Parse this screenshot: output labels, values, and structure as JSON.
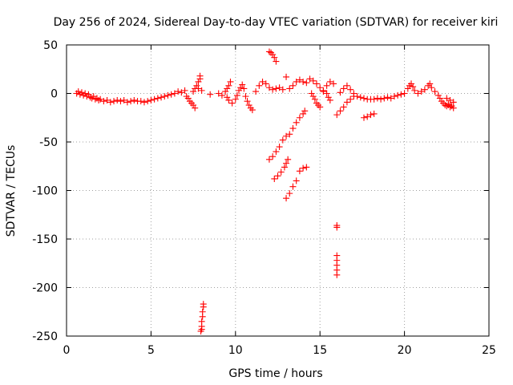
{
  "chart_data": {
    "type": "scatter",
    "title": "Day 256 of 2024, Sidereal Day-to-day VTEC variation (SDTVAR) for receiver kiri",
    "xlabel": "GPS time / hours",
    "ylabel": "SDTVAR / TECUs",
    "xlim": [
      0,
      25
    ],
    "ylim": [
      -250,
      50
    ],
    "xticks": [
      0,
      5,
      10,
      15,
      20,
      25
    ],
    "yticks": [
      50,
      0,
      -50,
      -100,
      -150,
      -200,
      -250
    ],
    "xtick_labels": [
      "0",
      "5",
      "10",
      "15",
      "20",
      "25"
    ],
    "ytick_labels": [
      "50",
      "0",
      "-50",
      "-100",
      "-150",
      "-200",
      "-250"
    ],
    "grid": true,
    "marker": "+",
    "color": "#ff0000",
    "series": [
      {
        "name": "SDTVAR",
        "points": [
          [
            0.6,
            0
          ],
          [
            0.7,
            2
          ],
          [
            0.8,
            -1
          ],
          [
            0.9,
            1
          ],
          [
            1.0,
            -2
          ],
          [
            1.1,
            0
          ],
          [
            1.2,
            -3
          ],
          [
            1.3,
            -1
          ],
          [
            1.4,
            -4
          ],
          [
            1.5,
            -5
          ],
          [
            1.6,
            -3
          ],
          [
            1.7,
            -6
          ],
          [
            1.8,
            -5
          ],
          [
            1.9,
            -7
          ],
          [
            2.0,
            -6
          ],
          [
            2.2,
            -8
          ],
          [
            2.4,
            -7
          ],
          [
            2.6,
            -9
          ],
          [
            2.8,
            -8
          ],
          [
            3.0,
            -7
          ],
          [
            3.2,
            -8
          ],
          [
            3.4,
            -7
          ],
          [
            3.6,
            -9
          ],
          [
            3.8,
            -8
          ],
          [
            4.0,
            -7
          ],
          [
            4.2,
            -8
          ],
          [
            4.4,
            -8
          ],
          [
            4.6,
            -9
          ],
          [
            4.8,
            -8
          ],
          [
            5.0,
            -7
          ],
          [
            5.2,
            -6
          ],
          [
            5.4,
            -5
          ],
          [
            5.6,
            -4
          ],
          [
            5.8,
            -3
          ],
          [
            6.0,
            -2
          ],
          [
            6.2,
            -1
          ],
          [
            6.4,
            0
          ],
          [
            6.6,
            2
          ],
          [
            6.8,
            1
          ],
          [
            7.0,
            3
          ],
          [
            7.1,
            -3
          ],
          [
            7.2,
            -5
          ],
          [
            7.3,
            -8
          ],
          [
            7.4,
            -10
          ],
          [
            7.5,
            -12
          ],
          [
            7.6,
            -15
          ],
          [
            7.5,
            2
          ],
          [
            7.6,
            5
          ],
          [
            7.7,
            8
          ],
          [
            7.8,
            12
          ],
          [
            7.9,
            15
          ],
          [
            7.9,
            18
          ],
          [
            7.8,
            5
          ],
          [
            8.0,
            3
          ],
          [
            8.5,
            -1
          ],
          [
            9.0,
            0
          ],
          [
            9.2,
            -2
          ],
          [
            9.4,
            2
          ],
          [
            9.5,
            5
          ],
          [
            9.6,
            8
          ],
          [
            9.7,
            12
          ],
          [
            9.5,
            -4
          ],
          [
            9.6,
            -7
          ],
          [
            9.8,
            -10
          ],
          [
            10.0,
            -6
          ],
          [
            10.1,
            -2
          ],
          [
            10.2,
            3
          ],
          [
            10.3,
            6
          ],
          [
            10.4,
            9
          ],
          [
            10.5,
            5
          ],
          [
            10.6,
            -3
          ],
          [
            10.7,
            -8
          ],
          [
            10.8,
            -12
          ],
          [
            10.9,
            -15
          ],
          [
            11.0,
            -17
          ],
          [
            11.2,
            2
          ],
          [
            11.4,
            8
          ],
          [
            11.6,
            12
          ],
          [
            11.8,
            10
          ],
          [
            12.0,
            6
          ],
          [
            12.2,
            4
          ],
          [
            12.4,
            5
          ],
          [
            12.6,
            6
          ],
          [
            12.8,
            4
          ],
          [
            13.0,
            17
          ],
          [
            12.0,
            43
          ],
          [
            12.1,
            42
          ],
          [
            12.2,
            40
          ],
          [
            12.3,
            37
          ],
          [
            12.4,
            33
          ],
          [
            13.2,
            5
          ],
          [
            13.4,
            8
          ],
          [
            13.6,
            12
          ],
          [
            13.8,
            14
          ],
          [
            14.0,
            12
          ],
          [
            14.2,
            11
          ],
          [
            14.4,
            15
          ],
          [
            14.6,
            13
          ],
          [
            14.8,
            10
          ],
          [
            15.0,
            6
          ],
          [
            15.2,
            3
          ],
          [
            15.4,
            0
          ],
          [
            15.5,
            -4
          ],
          [
            15.6,
            -7
          ],
          [
            16.2,
            1
          ],
          [
            16.4,
            5
          ],
          [
            16.6,
            8
          ],
          [
            16.8,
            4
          ],
          [
            17.0,
            0
          ],
          [
            17.2,
            -3
          ],
          [
            17.4,
            -4
          ],
          [
            17.6,
            -5
          ],
          [
            17.8,
            -6
          ],
          [
            18.0,
            -6
          ],
          [
            18.2,
            -6
          ],
          [
            18.4,
            -5
          ],
          [
            18.6,
            -6
          ],
          [
            18.8,
            -5
          ],
          [
            19.0,
            -4
          ],
          [
            19.2,
            -5
          ],
          [
            19.4,
            -3
          ],
          [
            19.6,
            -2
          ],
          [
            19.8,
            -1
          ],
          [
            20.0,
            0
          ],
          [
            20.2,
            5
          ],
          [
            20.3,
            8
          ],
          [
            20.4,
            10
          ],
          [
            20.5,
            7
          ],
          [
            20.6,
            3
          ],
          [
            20.8,
            0
          ],
          [
            21.0,
            2
          ],
          [
            21.2,
            4
          ],
          [
            21.4,
            8
          ],
          [
            21.5,
            10
          ],
          [
            21.6,
            6
          ],
          [
            21.8,
            2
          ],
          [
            22.0,
            -2
          ],
          [
            22.1,
            -5
          ],
          [
            22.2,
            -8
          ],
          [
            22.3,
            -10
          ],
          [
            22.4,
            -12
          ],
          [
            22.5,
            -13
          ],
          [
            22.6,
            -11
          ],
          [
            22.7,
            -14
          ],
          [
            22.8,
            -13
          ],
          [
            22.9,
            -15
          ],
          [
            22.5,
            -5
          ],
          [
            22.7,
            -7
          ],
          [
            22.9,
            -9
          ],
          [
            22.6,
            -12
          ],
          [
            14.5,
            0
          ],
          [
            14.6,
            -3
          ],
          [
            14.7,
            -6
          ],
          [
            14.8,
            -10
          ],
          [
            14.9,
            -12
          ],
          [
            15.0,
            -14
          ],
          [
            15.2,
            2
          ],
          [
            15.4,
            8
          ],
          [
            15.6,
            12
          ],
          [
            15.8,
            10
          ],
          [
            16.0,
            -22
          ],
          [
            16.2,
            -18
          ],
          [
            16.4,
            -14
          ],
          [
            16.6,
            -9
          ],
          [
            16.8,
            -6
          ],
          [
            17.0,
            -3
          ],
          [
            17.6,
            -25
          ],
          [
            17.8,
            -24
          ],
          [
            18.0,
            -22
          ],
          [
            18.2,
            -21
          ],
          [
            12.0,
            -68
          ],
          [
            12.2,
            -65
          ],
          [
            12.4,
            -60
          ],
          [
            12.6,
            -55
          ],
          [
            12.8,
            -48
          ],
          [
            13.0,
            -44
          ],
          [
            13.2,
            -42
          ],
          [
            13.4,
            -36
          ],
          [
            13.6,
            -30
          ],
          [
            13.8,
            -25
          ],
          [
            14.0,
            -21
          ],
          [
            14.1,
            -18
          ],
          [
            12.3,
            -88
          ],
          [
            12.5,
            -85
          ],
          [
            12.7,
            -81
          ],
          [
            12.9,
            -76
          ],
          [
            13.0,
            -72
          ],
          [
            13.1,
            -68
          ],
          [
            13.0,
            -108
          ],
          [
            13.2,
            -103
          ],
          [
            13.4,
            -96
          ],
          [
            13.6,
            -90
          ],
          [
            13.8,
            -80
          ],
          [
            14.0,
            -77
          ],
          [
            14.2,
            -76
          ],
          [
            16.0,
            -136
          ],
          [
            16.0,
            -138
          ],
          [
            16.0,
            -167
          ],
          [
            16.0,
            -172
          ],
          [
            16.0,
            -177
          ],
          [
            16.0,
            -182
          ],
          [
            16.0,
            -187
          ],
          [
            7.95,
            -245
          ],
          [
            8.0,
            -240
          ],
          [
            8.0,
            -235
          ],
          [
            8.05,
            -230
          ],
          [
            8.05,
            -225
          ],
          [
            8.1,
            -220
          ],
          [
            8.1,
            -217
          ],
          [
            8.0,
            -243
          ]
        ]
      }
    ]
  }
}
